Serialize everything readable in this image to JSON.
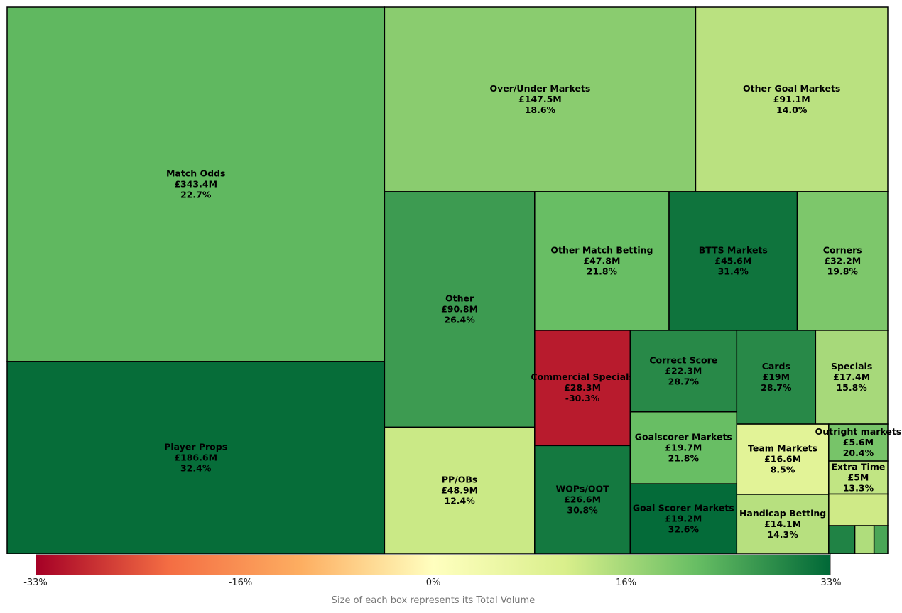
{
  "chart_data": {
    "type": "treemap",
    "color_metric": "percent change",
    "color_scale": [
      "#a50026",
      "#f46d43",
      "#fdae61",
      "#ffffbf",
      "#d9ef8b",
      "#66bd63",
      "#006837"
    ],
    "color_range": [
      -33,
      33
    ],
    "items": [
      {
        "name": "Match Odds",
        "value_label": "£343.4M",
        "value": 343.4,
        "pct_label": "22.7%",
        "pct": 22.7
      },
      {
        "name": "Player Props",
        "value_label": "£186.6M",
        "value": 186.6,
        "pct_label": "32.4%",
        "pct": 32.4
      },
      {
        "name": "Over/Under Markets",
        "value_label": "£147.5M",
        "value": 147.5,
        "pct_label": "18.6%",
        "pct": 18.6
      },
      {
        "name": "Other Goal Markets",
        "value_label": "£91.1M",
        "value": 91.1,
        "pct_label": "14.0%",
        "pct": 14.0
      },
      {
        "name": "Other",
        "value_label": "£90.8M",
        "value": 90.8,
        "pct_label": "26.4%",
        "pct": 26.4
      },
      {
        "name": "PP/OBs",
        "value_label": "£48.9M",
        "value": 48.9,
        "pct_label": "12.4%",
        "pct": 12.4
      },
      {
        "name": "Other Match Betting",
        "value_label": "£47.8M",
        "value": 47.8,
        "pct_label": "21.8%",
        "pct": 21.8
      },
      {
        "name": "BTTS Markets",
        "value_label": "£45.6M",
        "value": 45.6,
        "pct_label": "31.4%",
        "pct": 31.4
      },
      {
        "name": "Corners",
        "value_label": "£32.2M",
        "value": 32.2,
        "pct_label": "19.8%",
        "pct": 19.8
      },
      {
        "name": "Commercial Specials",
        "value_label": "£28.3M",
        "value": 28.3,
        "pct_label": "-30.3%",
        "pct": -30.3
      },
      {
        "name": "WOPs/OOT",
        "value_label": "£26.6M",
        "value": 26.6,
        "pct_label": "30.8%",
        "pct": 30.8
      },
      {
        "name": "Correct Score",
        "value_label": "£22.3M",
        "value": 22.3,
        "pct_label": "28.7%",
        "pct": 28.7
      },
      {
        "name": "Goalscorer Markets",
        "value_label": "£19.7M",
        "value": 19.7,
        "pct_label": "21.8%",
        "pct": 21.8
      },
      {
        "name": "Goal Scorer Markets",
        "value_label": "£19.2M",
        "value": 19.2,
        "pct_label": "32.6%",
        "pct": 32.6
      },
      {
        "name": "Cards",
        "value_label": "£19M",
        "value": 19.0,
        "pct_label": "28.7%",
        "pct": 28.7
      },
      {
        "name": "Specials",
        "value_label": "£17.4M",
        "value": 17.4,
        "pct_label": "15.8%",
        "pct": 15.8
      },
      {
        "name": "Team Markets",
        "value_label": "£16.6M",
        "value": 16.6,
        "pct_label": "8.5%",
        "pct": 8.5
      },
      {
        "name": "Handicap Betting",
        "value_label": "£14.1M",
        "value": 14.1,
        "pct_label": "14.3%",
        "pct": 14.3
      },
      {
        "name": "Outright markets",
        "value_label": "£5.6M",
        "value": 5.6,
        "pct_label": "20.4%",
        "pct": 20.4
      },
      {
        "name": "Extra Time",
        "value_label": "£5M",
        "value": 5.0,
        "pct_label": "13.3%",
        "pct": 13.3
      },
      {
        "name": "",
        "value_label": "",
        "value": 4.8,
        "pct_label": "",
        "pct": 12.0
      },
      {
        "name": "",
        "value_label": "",
        "value": 1.9,
        "pct_label": "",
        "pct": 29.5
      },
      {
        "name": "",
        "value_label": "",
        "value": 1.4,
        "pct_label": "",
        "pct": 15.0
      },
      {
        "name": "",
        "value_label": "",
        "value": 1.0,
        "pct_label": "",
        "pct": 25.0
      }
    ],
    "colorbar": {
      "ticks": [
        "-33%",
        "-16%",
        "0%",
        "16%",
        "33%"
      ],
      "tick_values": [
        -33,
        -16,
        0,
        16,
        33
      ],
      "caption": "Size of each box represents its Total Volume"
    }
  }
}
